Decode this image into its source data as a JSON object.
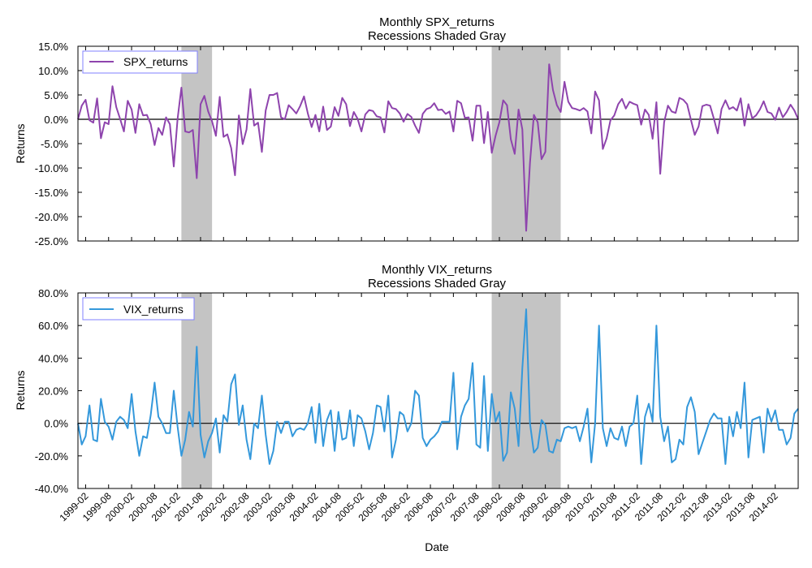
{
  "figure": {
    "xlabel": "Date",
    "date_ticks": [
      "1999-02",
      "1999-08",
      "2000-02",
      "2000-08",
      "2001-02",
      "2001-08",
      "2002-02",
      "2002-08",
      "2003-02",
      "2003-08",
      "2004-02",
      "2004-08",
      "2005-02",
      "2005-08",
      "2006-02",
      "2006-08",
      "2007-02",
      "2007-08",
      "2008-02",
      "2008-08",
      "2009-02",
      "2009-08",
      "2010-02",
      "2010-08",
      "2011-02",
      "2011-08",
      "2012-02",
      "2012-08",
      "2013-02",
      "2013-08",
      "2014-02"
    ]
  },
  "chart_data": [
    {
      "type": "line",
      "title": "Monthly SPX_returns",
      "subtitle": "Recessions Shaded Gray",
      "xlabel": "Date",
      "ylabel": "Returns",
      "legend": {
        "label": "SPX_returns",
        "position": "top-left"
      },
      "color": "#8e44ad",
      "x_start": "1998-12",
      "ylim": [
        -0.25,
        0.15
      ],
      "yticks": [
        0.15,
        0.1,
        0.05,
        0.0,
        -0.05,
        -0.1,
        -0.15,
        -0.2,
        -0.25
      ],
      "ytick_labels": [
        "15.0%",
        "10.0%",
        "5.0%",
        "0.0%",
        "-5.0%",
        "-10.0%",
        "-15.0%",
        "-20.0%",
        "-25.0%"
      ],
      "recessions": [
        [
          "2001-03",
          "2001-11"
        ],
        [
          "2007-12",
          "2009-06"
        ]
      ],
      "values": [
        0.0,
        0.028,
        0.04,
        -0.002,
        -0.007,
        0.043,
        -0.039,
        -0.006,
        -0.01,
        0.068,
        0.025,
        0.001,
        -0.025,
        0.038,
        0.02,
        -0.028,
        0.031,
        0.008,
        0.009,
        -0.01,
        -0.053,
        -0.018,
        -0.032,
        0.004,
        -0.01,
        -0.097,
        0.001,
        0.065,
        -0.025,
        -0.027,
        -0.022,
        -0.121,
        0.031,
        0.048,
        0.016,
        -0.004,
        -0.034,
        0.046,
        -0.036,
        -0.031,
        -0.059,
        -0.115,
        0.008,
        -0.051,
        -0.021,
        0.062,
        -0.013,
        -0.007,
        -0.067,
        0.018,
        0.05,
        0.05,
        0.054,
        0.004,
        0.0,
        0.029,
        0.021,
        0.012,
        0.027,
        0.047,
        0.012,
        -0.016,
        0.009,
        -0.025,
        0.026,
        -0.022,
        -0.015,
        0.025,
        0.007,
        0.044,
        0.031,
        -0.014,
        0.015,
        0.001,
        -0.025,
        0.01,
        0.019,
        0.017,
        0.006,
        0.004,
        -0.027,
        0.037,
        0.023,
        0.021,
        0.012,
        -0.005,
        0.011,
        0.005,
        -0.013,
        -0.028,
        0.011,
        0.021,
        0.024,
        0.033,
        0.019,
        0.02,
        0.011,
        0.016,
        -0.025,
        0.038,
        0.033,
        0.003,
        0.004,
        -0.044,
        0.028,
        0.028,
        -0.049,
        0.015,
        -0.069,
        -0.034,
        -0.006,
        0.039,
        0.029,
        -0.041,
        -0.071,
        0.02,
        -0.021,
        -0.229,
        -0.089,
        0.009,
        -0.006,
        -0.082,
        -0.067,
        0.113,
        0.06,
        0.029,
        0.015,
        0.077,
        0.036,
        0.023,
        0.021,
        0.018,
        0.023,
        0.016,
        -0.029,
        0.057,
        0.039,
        -0.061,
        -0.039,
        -0.002,
        0.008,
        0.031,
        0.042,
        0.022,
        0.036,
        0.032,
        0.029,
        -0.011,
        0.02,
        0.009,
        -0.04,
        0.035,
        -0.112,
        -0.006,
        0.028,
        0.016,
        0.013,
        0.044,
        0.04,
        0.031,
        -0.001,
        -0.032,
        -0.015,
        0.027,
        0.03,
        0.028,
        0.001,
        -0.029,
        0.021,
        0.039,
        0.021,
        0.025,
        0.018,
        0.043,
        -0.013,
        0.031,
        0.002,
        0.008,
        0.02,
        0.037,
        0.015,
        0.012,
        -0.001,
        0.024,
        0.004,
        0.015,
        0.03,
        0.018,
        0.0
      ]
    },
    {
      "type": "line",
      "title": "Monthly VIX_returns",
      "subtitle": "Recessions Shaded Gray",
      "xlabel": "Date",
      "ylabel": "Returns",
      "legend": {
        "label": "VIX_returns",
        "position": "top-left"
      },
      "color": "#3498db",
      "x_start": "1998-12",
      "ylim": [
        -0.4,
        0.8
      ],
      "yticks": [
        0.8,
        0.6,
        0.4,
        0.2,
        0.0,
        -0.2,
        -0.4
      ],
      "ytick_labels": [
        "80.0%",
        "60.0%",
        "40.0%",
        "20.0%",
        "0.0%",
        "-20.0%",
        "-40.0%"
      ],
      "recessions": [
        [
          "2001-03",
          "2001-11"
        ],
        [
          "2007-12",
          "2009-06"
        ]
      ],
      "values": [
        0.0,
        -0.13,
        -0.08,
        0.11,
        -0.1,
        -0.11,
        0.15,
        0.01,
        -0.02,
        -0.1,
        0.01,
        0.04,
        0.02,
        -0.03,
        0.18,
        -0.05,
        -0.2,
        -0.08,
        -0.09,
        0.05,
        0.25,
        0.04,
        0.0,
        -0.06,
        -0.06,
        0.2,
        -0.02,
        -0.2,
        -0.1,
        0.07,
        -0.02,
        0.47,
        -0.07,
        -0.21,
        -0.11,
        -0.06,
        0.03,
        -0.18,
        0.05,
        0.01,
        0.24,
        0.3,
        -0.01,
        0.11,
        -0.1,
        -0.22,
        0.0,
        -0.03,
        0.17,
        -0.07,
        -0.25,
        -0.17,
        0.01,
        -0.06,
        0.01,
        0.01,
        -0.08,
        -0.04,
        -0.03,
        -0.04,
        0.0,
        0.1,
        -0.12,
        0.12,
        -0.14,
        0.02,
        0.08,
        -0.17,
        0.07,
        -0.1,
        -0.09,
        0.08,
        -0.14,
        0.05,
        0.03,
        -0.05,
        -0.16,
        -0.06,
        0.11,
        0.1,
        -0.05,
        0.17,
        -0.21,
        -0.1,
        0.07,
        0.05,
        -0.05,
        0.0,
        0.2,
        0.17,
        -0.09,
        -0.14,
        -0.1,
        -0.08,
        -0.05,
        0.01,
        0.01,
        0.01,
        0.31,
        -0.16,
        0.04,
        0.11,
        0.15,
        0.37,
        -0.13,
        -0.15,
        0.29,
        -0.17,
        0.18,
        0.01,
        0.07,
        -0.23,
        -0.18,
        0.19,
        0.09,
        -0.14,
        0.34,
        0.7,
        0.0,
        -0.18,
        -0.15,
        0.02,
        -0.01,
        -0.17,
        -0.18,
        -0.1,
        -0.11,
        -0.03,
        -0.02,
        -0.03,
        -0.02,
        -0.11,
        -0.02,
        0.09,
        -0.24,
        0.0,
        0.6,
        -0.03,
        -0.14,
        -0.03,
        -0.09,
        -0.1,
        -0.02,
        -0.14,
        -0.02,
        0.0,
        0.17,
        -0.25,
        0.04,
        0.12,
        0.01,
        0.6,
        0.04,
        -0.11,
        -0.02,
        -0.24,
        -0.22,
        -0.1,
        -0.13,
        0.1,
        0.16,
        0.07,
        -0.19,
        -0.12,
        -0.05,
        0.02,
        0.06,
        0.03,
        0.03,
        -0.25,
        0.04,
        -0.08,
        0.07,
        -0.03,
        0.25,
        -0.21,
        0.02,
        0.03,
        0.04,
        -0.18,
        0.09,
        0.01,
        0.08,
        -0.04,
        -0.04,
        -0.13,
        -0.09,
        0.06,
        0.09
      ]
    }
  ]
}
